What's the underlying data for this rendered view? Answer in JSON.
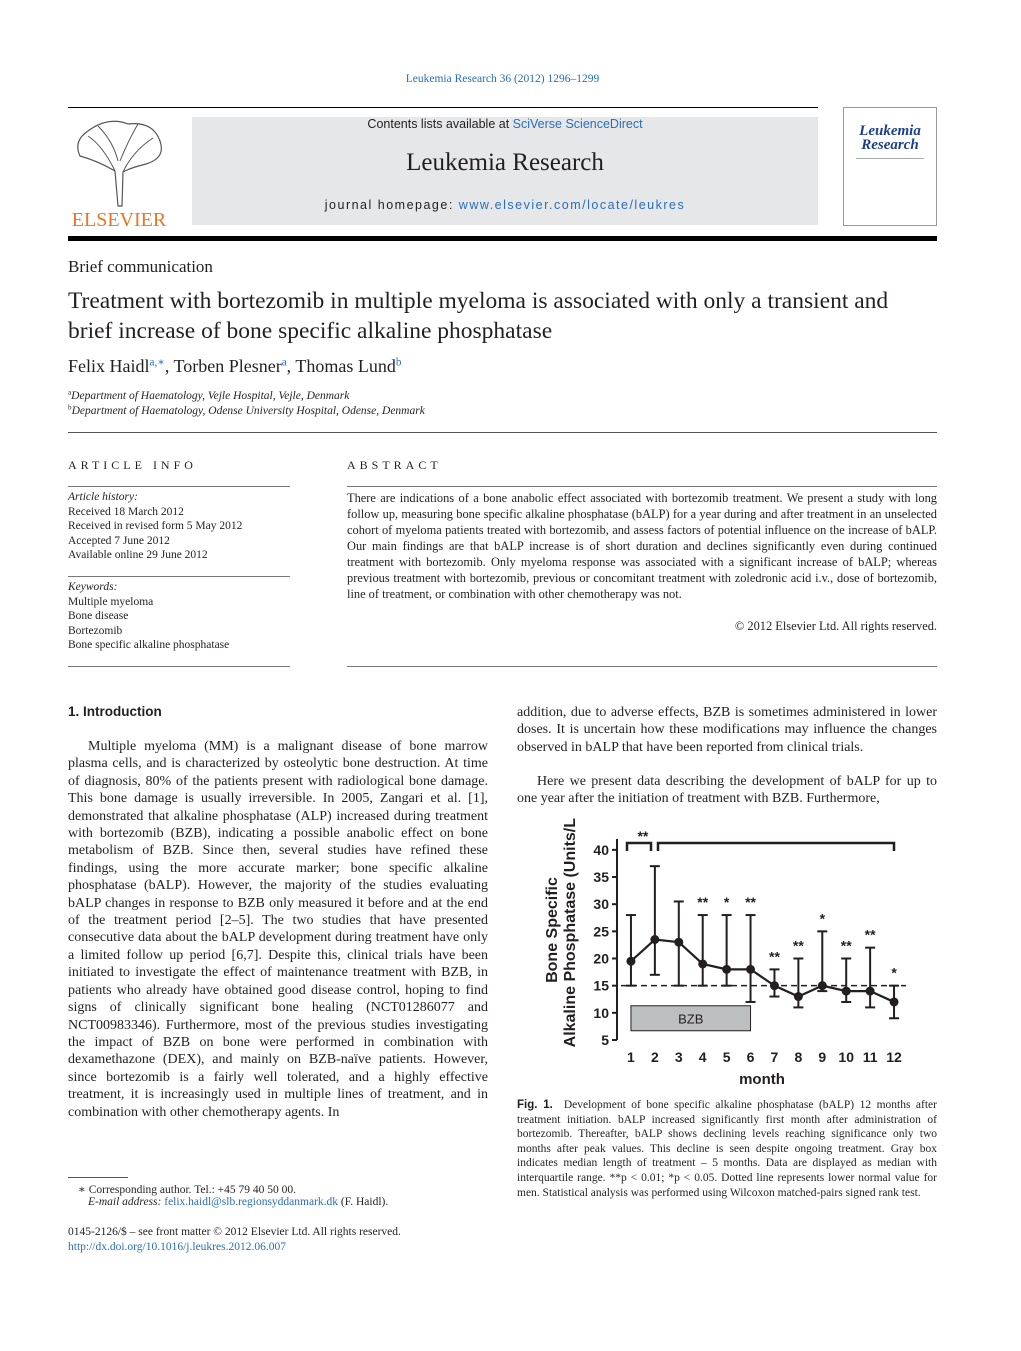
{
  "header": {
    "citation": "Leukemia Research 36 (2012) 1296–1299",
    "contents_prefix": "Contents lists available at",
    "contents_link": "SciVerse ScienceDirect",
    "journal": "Leukemia Research",
    "homepage_prefix": "journal homepage:",
    "homepage_link": "www.elsevier.com/locate/leukres",
    "publisher": "ELSEVIER",
    "cover_title": "Leukemia Research"
  },
  "article": {
    "section": "Brief communication",
    "title": "Treatment with bortezomib in multiple myeloma is associated with only a transient and brief increase of bone specific alkaline phosphatase",
    "authors": [
      {
        "name": "Felix Haidl",
        "sup": "a,∗"
      },
      {
        "name": ", Torben Plesner",
        "sup": "a"
      },
      {
        "name": ", Thomas Lund",
        "sup": "b"
      }
    ],
    "affiliations": [
      {
        "sup": "a",
        "text": "Department of Haematology, Vejle Hospital, Vejle, Denmark"
      },
      {
        "sup": "b",
        "text": "Department of Haematology, Odense University Hospital, Odense, Denmark"
      }
    ]
  },
  "article_info": {
    "heading": "ARTICLE INFO",
    "history_heading": "Article history:",
    "history": [
      "Received 18 March 2012",
      "Received in revised form 5 May 2012",
      "Accepted 7 June 2012",
      "Available online 29 June 2012"
    ],
    "keywords_heading": "Keywords:",
    "keywords": [
      "Multiple myeloma",
      "Bone disease",
      "Bortezomib",
      "Bone specific alkaline phosphatase"
    ]
  },
  "abstract": {
    "heading": "ABSTRACT",
    "text": "There are indications of a bone anabolic effect associated with bortezomib treatment. We present a study with long follow up, measuring bone specific alkaline phosphatase (bALP) for a year during and after treatment in an unselected cohort of myeloma patients treated with bortezomib, and assess factors of potential influence on the increase of bALP. Our main findings are that bALP increase is of short duration and declines significantly even during continued treatment with bortezomib. Only myeloma response was associated with a significant increase of bALP; whereas previous treatment with bortezomib, previous or concomitant treatment with zoledronic acid i.v., dose of bortezomib, line of treatment, or combination with other chemotherapy was not.",
    "copyright": "© 2012 Elsevier Ltd. All rights reserved."
  },
  "introduction": {
    "heading": "1.  Introduction",
    "paragraphs": [
      "Multiple myeloma (MM) is a malignant disease of bone marrow plasma cells, and is characterized by osteolytic bone destruction. At time of diagnosis, 80% of the patients present with radiological bone damage. This bone damage is usually irreversible. In 2005, Zangari et al. [1], demonstrated that alkaline phosphatase (ALP) increased during treatment with bortezomib (BZB), indicating a possible anabolic effect on bone metabolism of BZB. Since then, several studies have refined these findings, using the more accurate marker; bone specific alkaline phosphatase (bALP). However, the majority of the studies evaluating bALP changes in response to BZB only measured it before and at the end of the treatment period [2–5]. The two studies that have presented consecutive data about the bALP development during treatment have only a limited follow up period [6,7]. Despite this, clinical trials have been initiated to investigate the effect of maintenance treatment with BZB, in patients who already have obtained good disease control, hoping to find signs of clinically significant bone healing (NCT01286077 and NCT00983346). Furthermore, most of the previous studies investigating the impact of BZB on bone were performed in combination with dexamethazone (DEX), and mainly on BZB-naïve patients. However, since bortezomib is a fairly well tolerated, and a highly effective treatment, it is increasingly used in multiple lines of treatment, and in combination with other chemotherapy agents. In",
      "addition, due to adverse effects, BZB is sometimes administered in lower doses. It is uncertain how these modifications may influence the changes observed in bALP that have been reported from clinical trials.",
      "Here we present data describing the development of bALP for up to one year after the initiation of treatment with BZB. Furthermore,"
    ]
  },
  "chart_data": {
    "type": "line",
    "ylabel": [
      "Bone Specific",
      "Alkaline Phosphatase (Units/L)"
    ],
    "xlabel": "month",
    "categories": [
      "1",
      "2",
      "3",
      "4",
      "5",
      "6",
      "7",
      "8",
      "9",
      "10",
      "11",
      "12"
    ],
    "series": [
      {
        "values": [
          19.5,
          23.5,
          23,
          19,
          18,
          18,
          15,
          13,
          15,
          14,
          14,
          12
        ],
        "q1": [
          15,
          17,
          15,
          15,
          15,
          12,
          13,
          11,
          14,
          12,
          11,
          9
        ],
        "q3": [
          28,
          37,
          30.5,
          28,
          28,
          28,
          18,
          20,
          25,
          20,
          22,
          15
        ],
        "color": "#231f20"
      }
    ],
    "significance": [
      null,
      "**",
      null,
      "**",
      "*",
      "**",
      "**",
      "**",
      "*",
      "**",
      "**",
      "*"
    ],
    "reference_line": 15,
    "shaded_box": {
      "label": "BZB",
      "x_start": 1,
      "x_end": 6
    },
    "ylim": [
      5,
      42
    ],
    "yticks": [
      5,
      10,
      15,
      20,
      25,
      30,
      35,
      40
    ]
  },
  "figure": {
    "label": "Fig. 1.",
    "caption": "Development of bone specific alkaline phosphatase (bALP) 12 months after treatment initiation. bALP increased significantly first month after administration of bortezomib. Thereafter, bALP shows declining levels reaching significance only two months after peak values. This decline is seen despite ongoing treatment. Gray box indicates median length of treatment – 5 months. Data are displayed as median with interquartile range. **p < 0.01; *p < 0.05. Dotted line represents lower normal value for men. Statistical analysis was performed using Wilcoxon matched-pairs signed rank test."
  },
  "footer": {
    "corresponding": "∗  Corresponding author. Tel.: +45 79 40 50 00.",
    "email_label": "E-mail address:",
    "email": "felix.haidl@slb.regionsyddanmark.dk",
    "email_suffix": "(F. Haidl).",
    "front_matter": "0145-2126/$ – see front matter © 2012 Elsevier Ltd. All rights reserved.",
    "doi": "http://dx.doi.org/10.1016/j.leukres.2012.06.007"
  }
}
